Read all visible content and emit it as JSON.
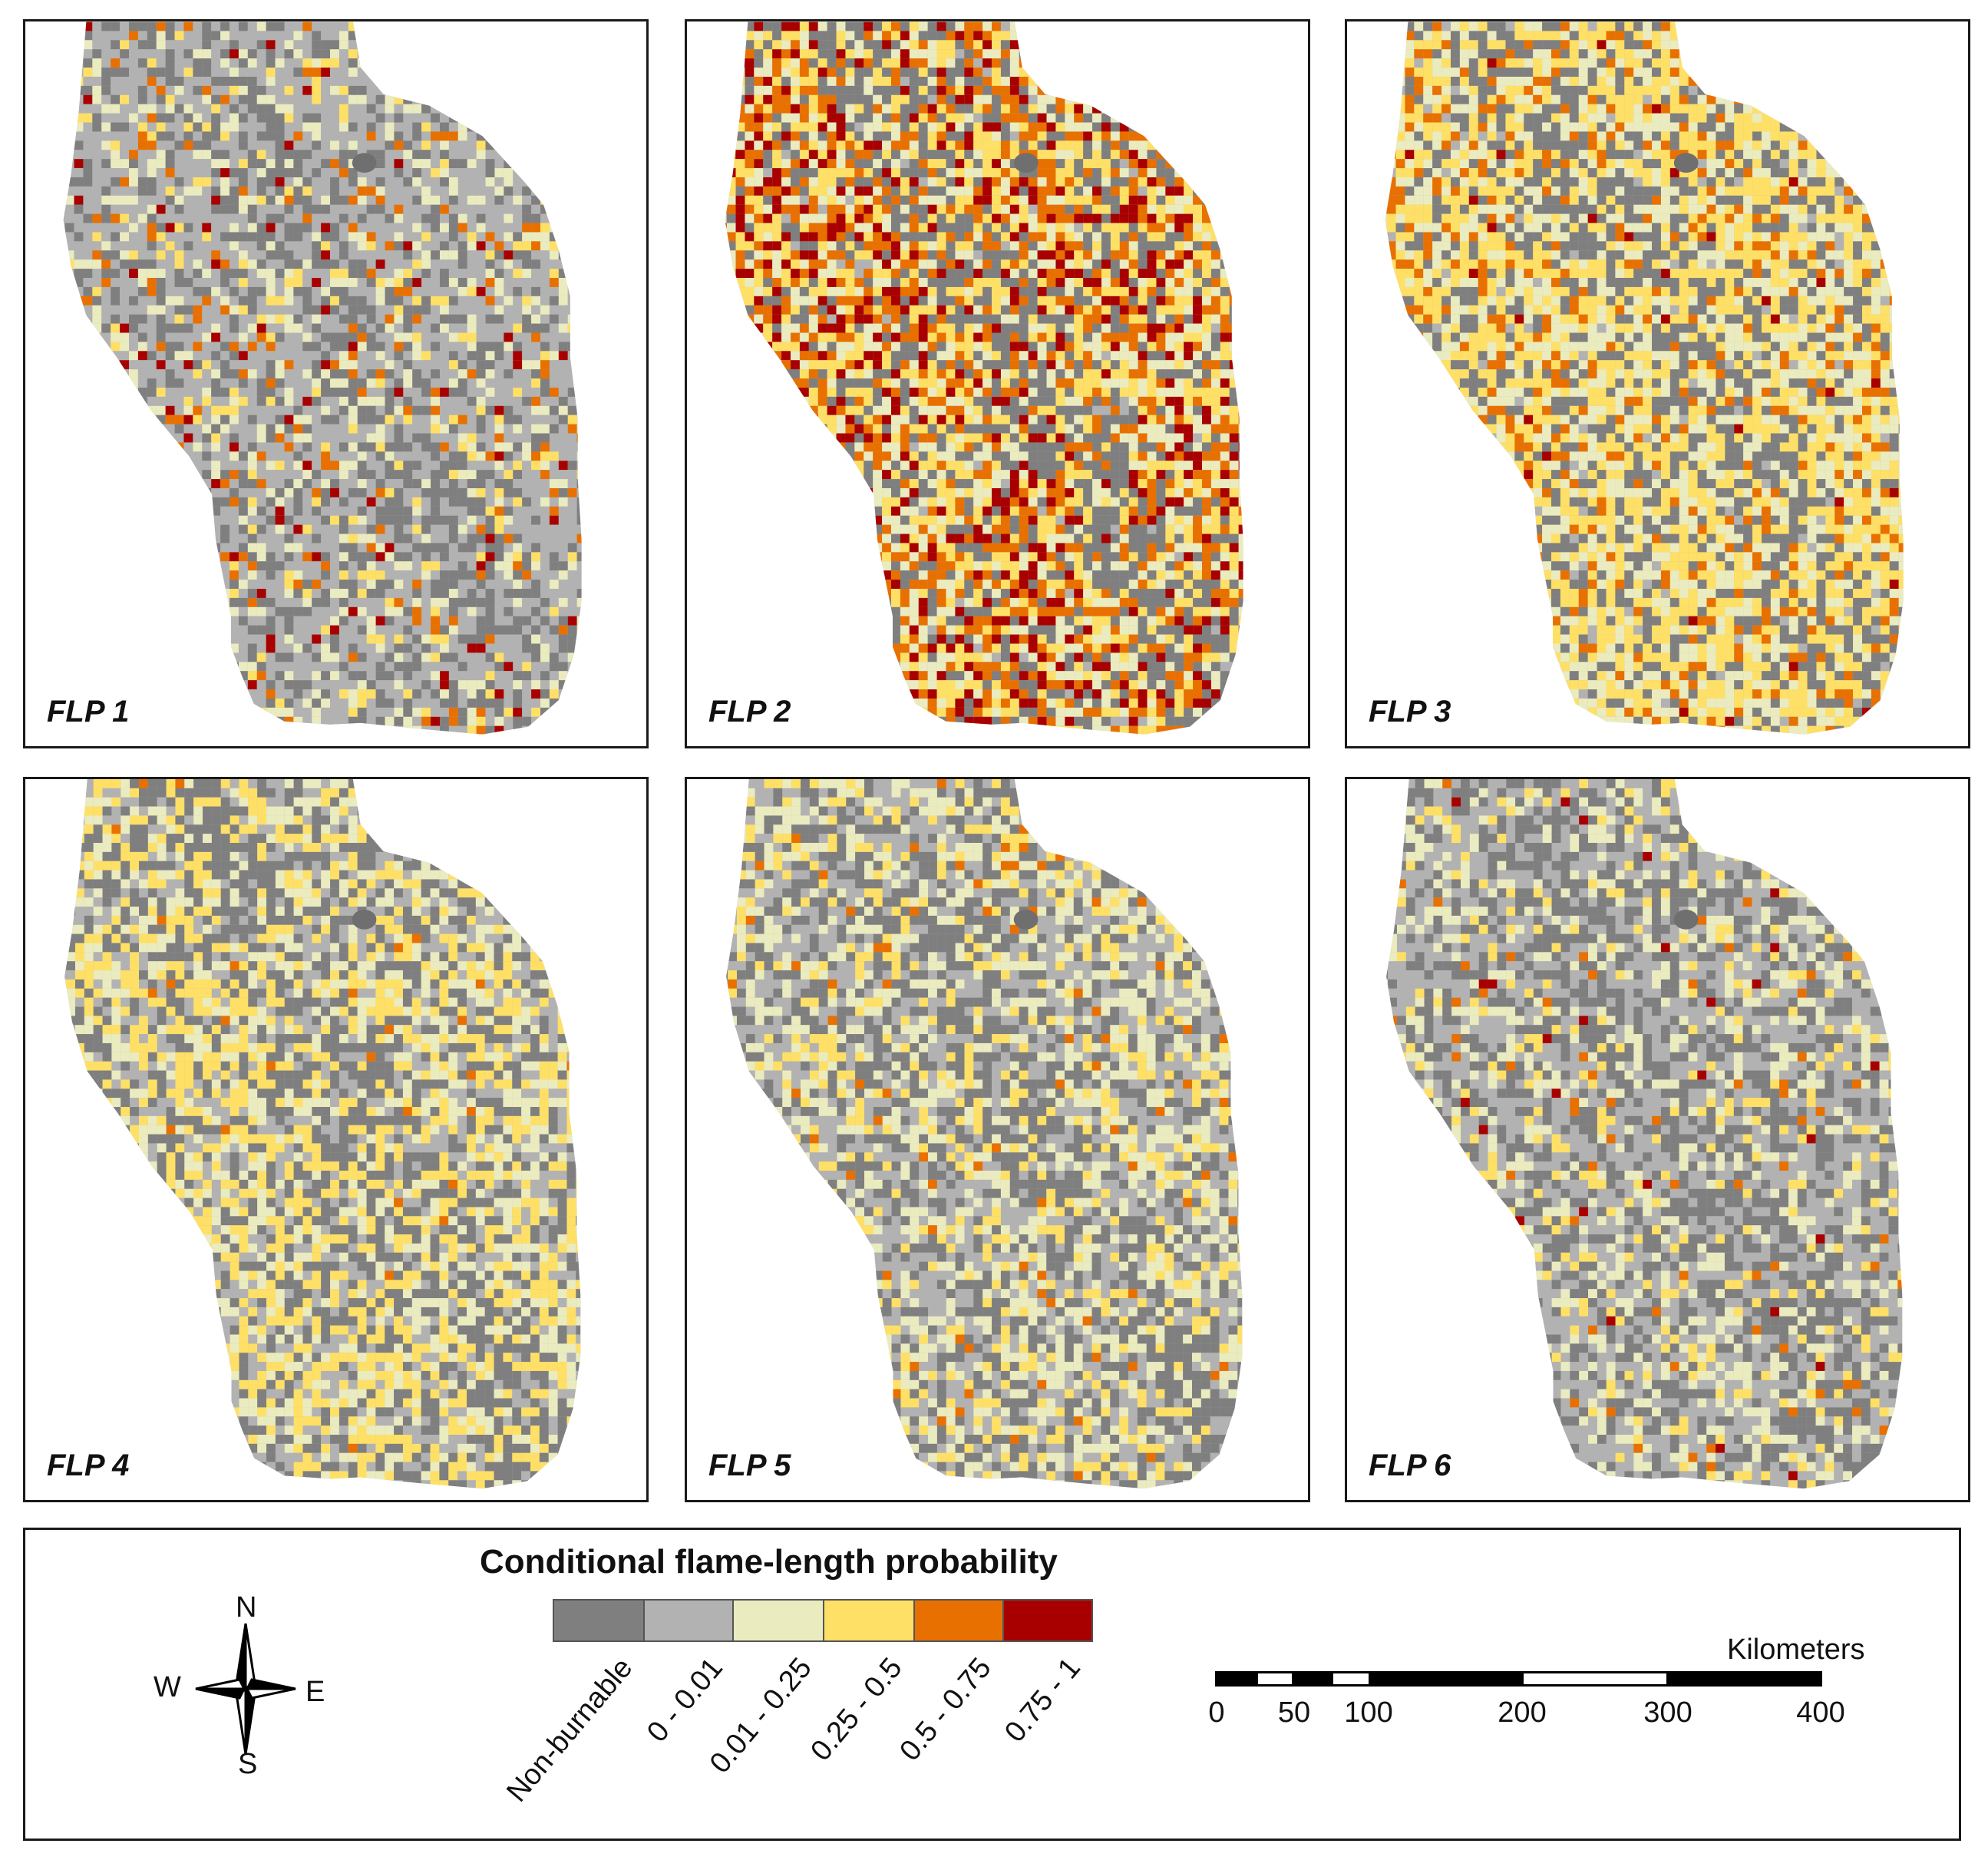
{
  "panels": [
    {
      "label": "FLP 1"
    },
    {
      "label": "FLP 2"
    },
    {
      "label": "FLP 3"
    },
    {
      "label": "FLP 4"
    },
    {
      "label": "FLP 5"
    },
    {
      "label": "FLP 6"
    }
  ],
  "legend": {
    "title": "Conditional flame-length probability",
    "classes": [
      {
        "label": "Non-burnable",
        "color": "#7f7f7f"
      },
      {
        "label": "0 - 0.01",
        "color": "#b2b2b2"
      },
      {
        "label": "0.01 - 0.25",
        "color": "#ebebc0"
      },
      {
        "label": "0.25 - 0.5",
        "color": "#ffe066"
      },
      {
        "label": "0.5 - 0.75",
        "color": "#e87000"
      },
      {
        "label": "0.75 - 1",
        "color": "#a80000"
      }
    ]
  },
  "compass": {
    "n": "N",
    "s": "S",
    "e": "E",
    "w": "W"
  },
  "scale": {
    "units": "Kilometers",
    "ticks": [
      "0",
      "50",
      "100",
      "200",
      "300",
      "400"
    ]
  }
}
